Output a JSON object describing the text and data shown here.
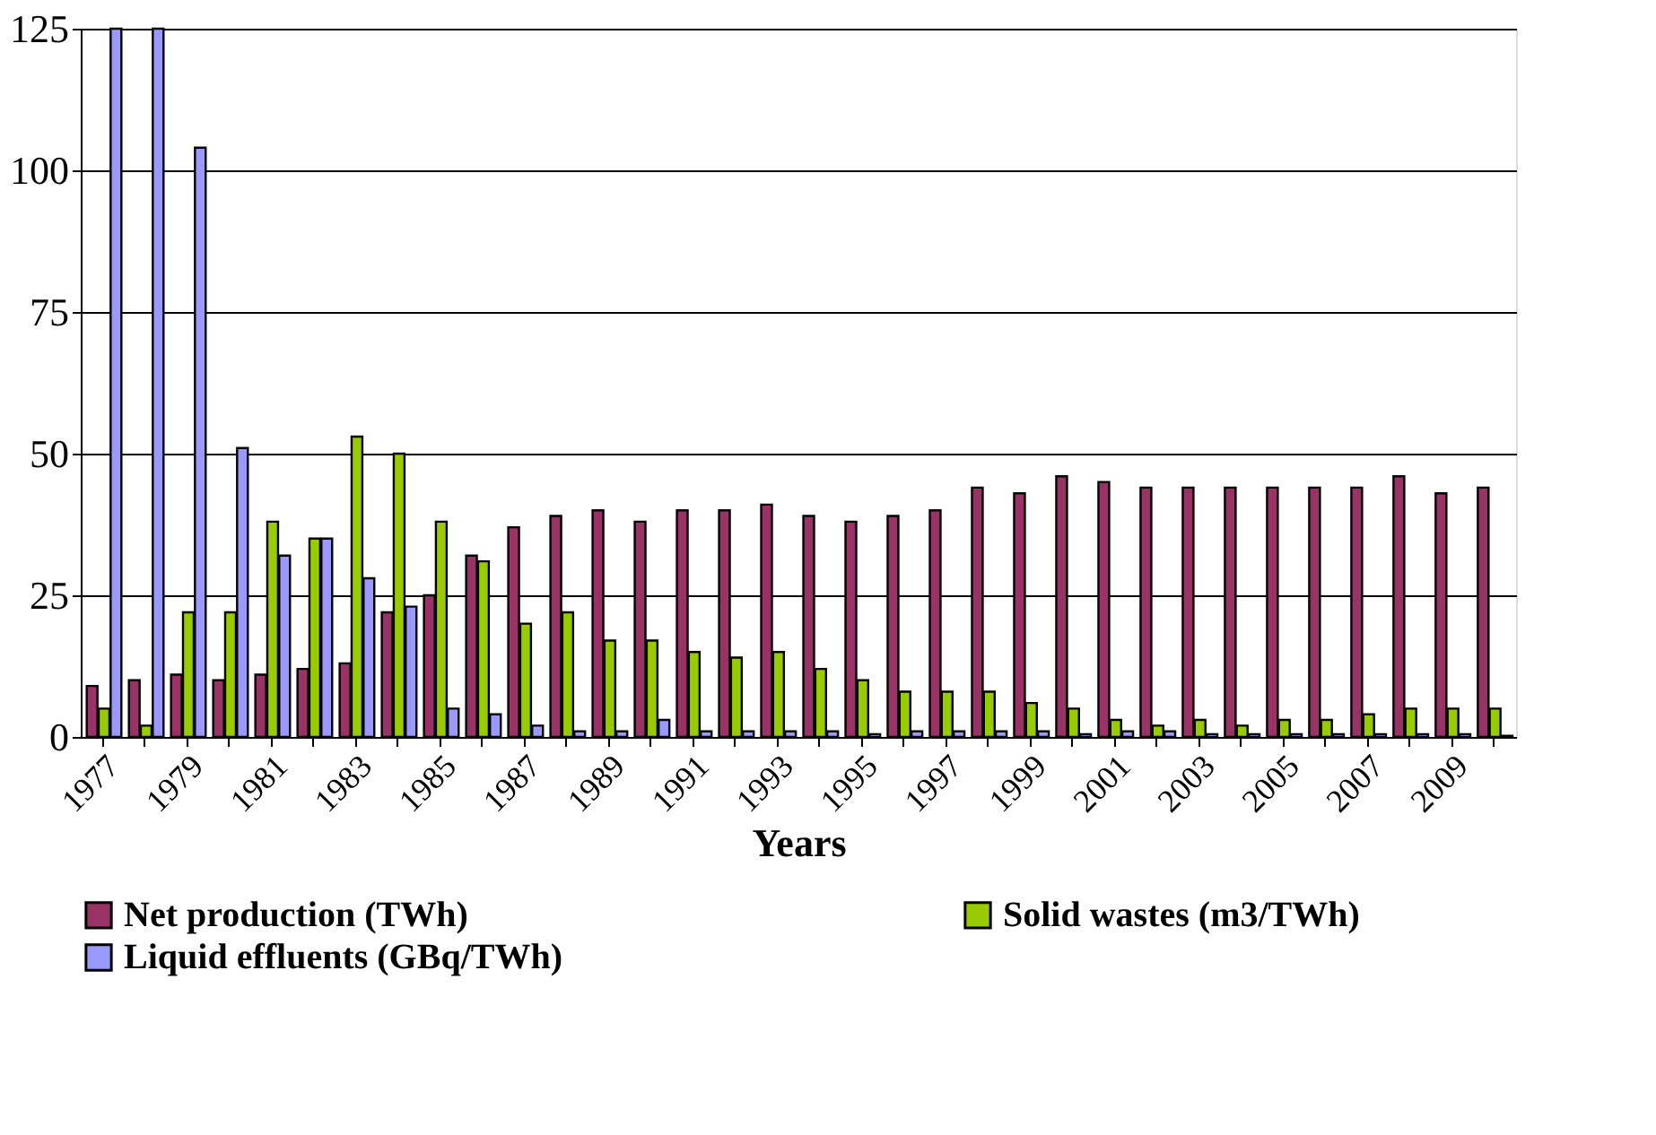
{
  "chart_data": {
    "type": "bar",
    "xlabel": "Years",
    "categories": [
      "1977",
      null,
      "1979",
      null,
      "1981",
      null,
      "1983",
      null,
      "1985",
      null,
      "1987",
      null,
      "1989",
      null,
      "1991",
      null,
      "1993",
      null,
      "1995",
      null,
      "1997",
      null,
      "1999",
      null,
      "2001",
      null,
      "2003",
      null,
      "2005",
      null,
      "2007",
      null,
      "2009",
      null
    ],
    "series": [
      {
        "name": "Net production (TWh)",
        "color": "#993366",
        "values": [
          9,
          10,
          11,
          10,
          11,
          12,
          13,
          22,
          25,
          32,
          37,
          39,
          40,
          38,
          40,
          40,
          41,
          39,
          38,
          39,
          40,
          44,
          43,
          46,
          45,
          44,
          44,
          44,
          44,
          44,
          44,
          46,
          43,
          44
        ]
      },
      {
        "name": "Solid wastes (m3/TWh)",
        "color": "#99cc00",
        "values": [
          5,
          2,
          22,
          22,
          38,
          35,
          53,
          50,
          38,
          31,
          20,
          22,
          17,
          17,
          15,
          14,
          15,
          12,
          10,
          8,
          8,
          8,
          6,
          5,
          3,
          2,
          3,
          2,
          3,
          3,
          4,
          5,
          5,
          5
        ]
      },
      {
        "name": "Liquid effluents (GBq/TWh)",
        "color": "#9999ff",
        "values": [
          125,
          125,
          104,
          51,
          32,
          35,
          28,
          23,
          5,
          4,
          2,
          1,
          1,
          3,
          1,
          1,
          1,
          1,
          0.5,
          1,
          1,
          1,
          1,
          0.5,
          1,
          1,
          0.5,
          0.5,
          0.5,
          0.5,
          0.5,
          0.5,
          0.5,
          0.2
        ]
      }
    ],
    "ylim": [
      0,
      125
    ],
    "yticks": [
      0,
      25,
      50,
      75,
      100,
      125
    ],
    "grid": "y",
    "legend": "bottom"
  }
}
